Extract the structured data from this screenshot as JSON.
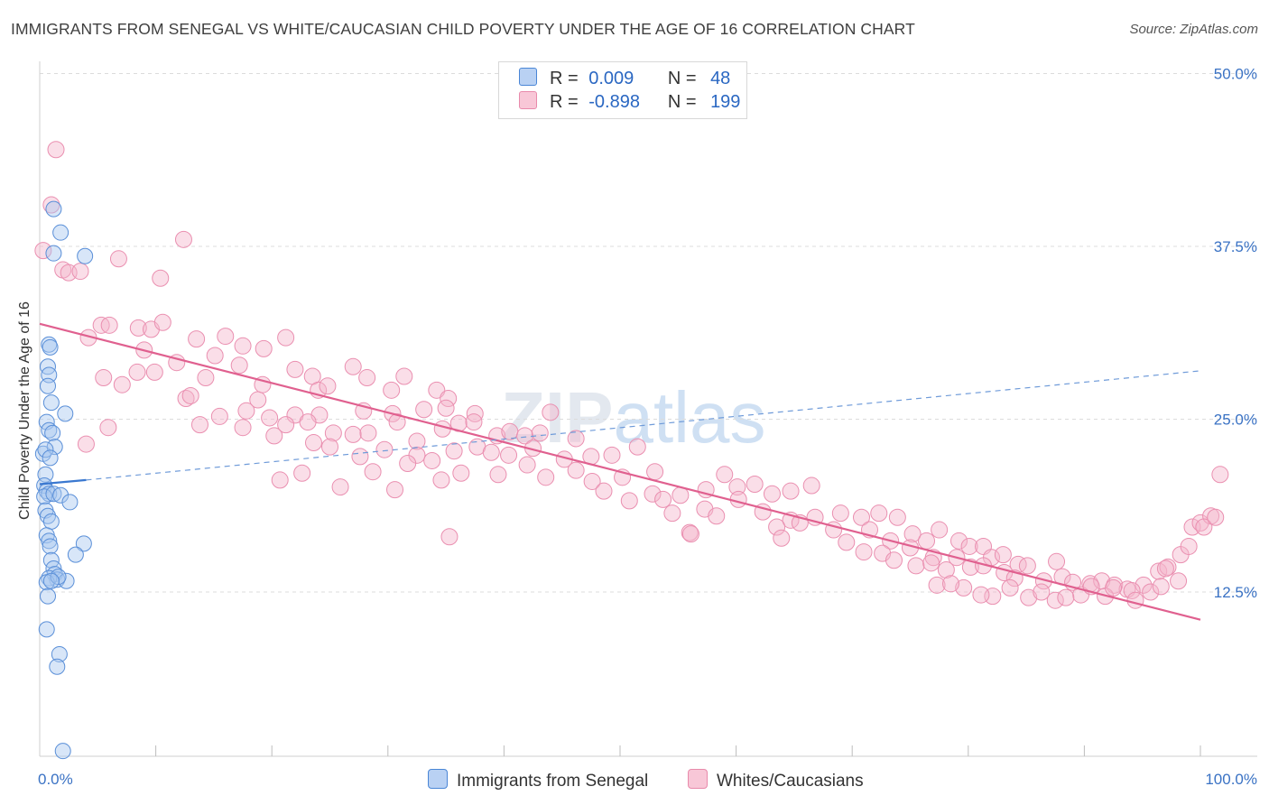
{
  "title": "IMMIGRANTS FROM SENEGAL VS WHITE/CAUCASIAN CHILD POVERTY UNDER THE AGE OF 16 CORRELATION CHART",
  "source": "Source: ZipAtlas.com",
  "watermark": "ZIPatlas",
  "colors": {
    "blue": "#4a86d6",
    "blue_fill": "#a9c7f0",
    "pink": "#e05c90",
    "pink_fill": "#f4b6cb",
    "axis_text": "#3a72c4"
  },
  "legend_box": {
    "rows": [
      {
        "r_label": "R =",
        "r_value": "0.009",
        "n_label": "N =",
        "n_value": "48"
      },
      {
        "r_label": "R =",
        "r_value": "-0.898",
        "n_label": "N =",
        "n_value": "199"
      }
    ]
  },
  "bottom_legend": [
    "Immigrants from Senegal",
    "Whites/Caucasians"
  ],
  "chart_data": {
    "type": "scatter",
    "title": "IMMIGRANTS FROM SENEGAL VS WHITE/CAUCASIAN CHILD POVERTY UNDER THE AGE OF 16 CORRELATION CHART",
    "xlabel": "",
    "ylabel": "Child Poverty Under the Age of 16",
    "xlim": [
      0,
      100
    ],
    "ylim": [
      0,
      52
    ],
    "x_tick_labels": [
      "0.0%",
      "100.0%"
    ],
    "y_ticks": [
      12.5,
      25.0,
      37.5,
      50.0
    ],
    "y_tick_labels": [
      "12.5%",
      "25.0%",
      "37.5%",
      "50.0%"
    ],
    "grid": "horizontal dashed",
    "legend_placement": "top-center",
    "series": [
      {
        "name": "Immigrants from Senegal",
        "R": 0.009,
        "N": 48,
        "trend": {
          "solid": [
            [
              0,
              20.3
            ],
            [
              4,
              20.6
            ]
          ],
          "dashed": [
            [
              4,
              20.6
            ],
            [
              100,
              28.5
            ]
          ]
        },
        "points": [
          [
            0.3,
            22.5
          ],
          [
            0.5,
            21.0
          ],
          [
            0.4,
            20.2
          ],
          [
            0.6,
            19.8
          ],
          [
            0.8,
            19.6
          ],
          [
            0.4,
            19.4
          ],
          [
            1.2,
            19.6
          ],
          [
            1.8,
            19.5
          ],
          [
            0.5,
            18.4
          ],
          [
            0.7,
            18.0
          ],
          [
            1.0,
            17.6
          ],
          [
            0.6,
            16.6
          ],
          [
            0.8,
            16.2
          ],
          [
            0.9,
            15.8
          ],
          [
            1.0,
            14.8
          ],
          [
            1.2,
            14.2
          ],
          [
            1.3,
            13.8
          ],
          [
            1.5,
            13.4
          ],
          [
            0.8,
            13.5
          ],
          [
            0.6,
            13.2
          ],
          [
            0.7,
            12.2
          ],
          [
            0.6,
            9.8
          ],
          [
            1.7,
            8.0
          ],
          [
            1.5,
            7.1
          ],
          [
            2.0,
            1.0
          ],
          [
            1.2,
            40.2
          ],
          [
            1.8,
            38.5
          ],
          [
            1.2,
            37.0
          ],
          [
            3.9,
            36.8
          ],
          [
            0.8,
            30.4
          ],
          [
            0.9,
            30.2
          ],
          [
            0.7,
            28.8
          ],
          [
            0.8,
            28.2
          ],
          [
            0.7,
            27.4
          ],
          [
            1.0,
            26.2
          ],
          [
            2.2,
            25.4
          ],
          [
            0.6,
            24.8
          ],
          [
            0.8,
            24.2
          ],
          [
            1.1,
            24.0
          ],
          [
            1.3,
            23.0
          ],
          [
            0.5,
            22.8
          ],
          [
            0.9,
            22.2
          ],
          [
            2.6,
            19.0
          ],
          [
            3.8,
            16.0
          ],
          [
            3.1,
            15.2
          ],
          [
            2.3,
            13.3
          ],
          [
            1.6,
            13.6
          ],
          [
            1.0,
            13.3
          ]
        ]
      },
      {
        "name": "Whites/Caucasians",
        "R": -0.898,
        "N": 199,
        "trend": {
          "solid": [
            [
              0,
              31.9
            ],
            [
              100,
              10.5
            ]
          ]
        },
        "points": [
          [
            1.4,
            44.5
          ],
          [
            1.0,
            40.5
          ],
          [
            0.3,
            37.2
          ],
          [
            2.0,
            35.8
          ],
          [
            2.5,
            35.6
          ],
          [
            3.5,
            35.7
          ],
          [
            6.8,
            36.6
          ],
          [
            10.4,
            35.2
          ],
          [
            12.4,
            38.0
          ],
          [
            4.2,
            30.9
          ],
          [
            5.3,
            31.8
          ],
          [
            6.0,
            31.8
          ],
          [
            8.5,
            31.6
          ],
          [
            9.6,
            31.5
          ],
          [
            10.6,
            32.0
          ],
          [
            13.5,
            30.8
          ],
          [
            16.0,
            31.0
          ],
          [
            17.5,
            30.3
          ],
          [
            19.3,
            30.1
          ],
          [
            21.2,
            30.9
          ],
          [
            9.0,
            30.0
          ],
          [
            7.1,
            27.5
          ],
          [
            5.5,
            28.0
          ],
          [
            8.4,
            28.4
          ],
          [
            9.9,
            28.4
          ],
          [
            11.8,
            29.1
          ],
          [
            14.3,
            28.0
          ],
          [
            15.1,
            29.6
          ],
          [
            17.2,
            28.9
          ],
          [
            18.8,
            26.4
          ],
          [
            19.2,
            27.5
          ],
          [
            22.0,
            28.6
          ],
          [
            23.5,
            28.1
          ],
          [
            24.0,
            27.1
          ],
          [
            24.8,
            27.4
          ],
          [
            27.0,
            28.8
          ],
          [
            28.2,
            28.0
          ],
          [
            31.4,
            28.1
          ],
          [
            30.3,
            27.1
          ],
          [
            34.2,
            27.1
          ],
          [
            35.2,
            26.5
          ],
          [
            12.6,
            26.5
          ],
          [
            13.0,
            26.7
          ],
          [
            17.8,
            25.6
          ],
          [
            19.8,
            25.1
          ],
          [
            22.0,
            25.3
          ],
          [
            24.1,
            25.3
          ],
          [
            27.9,
            25.6
          ],
          [
            30.4,
            25.4
          ],
          [
            33.1,
            25.7
          ],
          [
            35.0,
            25.8
          ],
          [
            37.5,
            25.4
          ],
          [
            4.0,
            23.2
          ],
          [
            5.9,
            24.4
          ],
          [
            13.8,
            24.6
          ],
          [
            15.5,
            25.2
          ],
          [
            17.5,
            24.4
          ],
          [
            20.2,
            23.8
          ],
          [
            21.2,
            24.6
          ],
          [
            23.1,
            24.8
          ],
          [
            25.3,
            24.0
          ],
          [
            27.0,
            23.9
          ],
          [
            28.3,
            24.0
          ],
          [
            30.8,
            24.8
          ],
          [
            32.5,
            23.4
          ],
          [
            34.7,
            24.3
          ],
          [
            36.1,
            24.7
          ],
          [
            37.4,
            24.8
          ],
          [
            39.4,
            23.8
          ],
          [
            40.5,
            24.1
          ],
          [
            41.8,
            23.8
          ],
          [
            43.1,
            24.0
          ],
          [
            44.0,
            25.5
          ],
          [
            46.2,
            23.6
          ],
          [
            23.6,
            23.3
          ],
          [
            25.0,
            23.0
          ],
          [
            27.6,
            22.3
          ],
          [
            29.7,
            22.8
          ],
          [
            32.5,
            22.4
          ],
          [
            33.8,
            22.0
          ],
          [
            35.7,
            22.7
          ],
          [
            37.7,
            23.0
          ],
          [
            38.9,
            22.6
          ],
          [
            40.4,
            22.4
          ],
          [
            42.5,
            22.9
          ],
          [
            45.2,
            22.1
          ],
          [
            47.5,
            22.3
          ],
          [
            49.3,
            22.4
          ],
          [
            51.5,
            23.0
          ],
          [
            20.7,
            20.6
          ],
          [
            22.6,
            21.1
          ],
          [
            25.9,
            20.1
          ],
          [
            28.7,
            21.2
          ],
          [
            30.6,
            19.9
          ],
          [
            31.7,
            21.8
          ],
          [
            34.6,
            20.6
          ],
          [
            36.3,
            21.1
          ],
          [
            39.5,
            21.0
          ],
          [
            42.0,
            21.7
          ],
          [
            43.6,
            20.8
          ],
          [
            46.2,
            21.3
          ],
          [
            47.6,
            20.5
          ],
          [
            50.2,
            20.8
          ],
          [
            52.8,
            19.6
          ],
          [
            55.2,
            19.5
          ],
          [
            57.4,
            19.9
          ],
          [
            59.0,
            21.0
          ],
          [
            60.1,
            20.1
          ],
          [
            61.6,
            20.3
          ],
          [
            63.1,
            19.6
          ],
          [
            64.7,
            19.8
          ],
          [
            66.5,
            20.2
          ],
          [
            53.0,
            21.2
          ],
          [
            48.6,
            19.8
          ],
          [
            50.8,
            19.1
          ],
          [
            53.7,
            19.2
          ],
          [
            54.5,
            18.2
          ],
          [
            57.3,
            18.5
          ],
          [
            58.3,
            18.0
          ],
          [
            60.2,
            19.2
          ],
          [
            62.3,
            18.3
          ],
          [
            64.7,
            17.7
          ],
          [
            65.5,
            17.5
          ],
          [
            66.8,
            17.9
          ],
          [
            69.0,
            18.2
          ],
          [
            70.8,
            17.9
          ],
          [
            72.3,
            18.2
          ],
          [
            73.9,
            17.9
          ],
          [
            63.5,
            17.2
          ],
          [
            68.4,
            17.0
          ],
          [
            71.5,
            17.0
          ],
          [
            73.3,
            16.2
          ],
          [
            75.2,
            16.7
          ],
          [
            76.4,
            16.2
          ],
          [
            77.5,
            17.0
          ],
          [
            79.2,
            16.2
          ],
          [
            80.1,
            15.8
          ],
          [
            81.3,
            15.8
          ],
          [
            56.0,
            16.8
          ],
          [
            63.9,
            16.4
          ],
          [
            69.5,
            16.1
          ],
          [
            71.0,
            15.4
          ],
          [
            72.6,
            15.3
          ],
          [
            75.0,
            15.7
          ],
          [
            77.0,
            15.0
          ],
          [
            79.0,
            15.0
          ],
          [
            82.0,
            15.0
          ],
          [
            83.0,
            15.2
          ],
          [
            84.3,
            14.5
          ],
          [
            85.1,
            14.4
          ],
          [
            87.6,
            14.7
          ],
          [
            35.3,
            16.5
          ],
          [
            56.1,
            16.7
          ],
          [
            73.6,
            14.8
          ],
          [
            75.5,
            14.4
          ],
          [
            76.8,
            14.6
          ],
          [
            78.1,
            14.1
          ],
          [
            80.2,
            14.3
          ],
          [
            81.3,
            14.4
          ],
          [
            83.1,
            13.9
          ],
          [
            84.0,
            13.5
          ],
          [
            86.5,
            13.3
          ],
          [
            88.1,
            13.6
          ],
          [
            89.0,
            13.2
          ],
          [
            90.5,
            13.1
          ],
          [
            91.5,
            13.3
          ],
          [
            92.6,
            13.0
          ],
          [
            93.7,
            12.7
          ],
          [
            95.1,
            13.0
          ],
          [
            96.4,
            14.0
          ],
          [
            97.2,
            14.3
          ],
          [
            98.3,
            15.2
          ],
          [
            99.0,
            15.8
          ],
          [
            99.3,
            17.2
          ],
          [
            100.0,
            17.5
          ],
          [
            100.9,
            18.0
          ],
          [
            101.7,
            21.0
          ],
          [
            91.8,
            12.2
          ],
          [
            94.1,
            12.6
          ],
          [
            77.3,
            13.0
          ],
          [
            79.6,
            12.8
          ],
          [
            82.1,
            12.2
          ],
          [
            85.2,
            12.1
          ],
          [
            87.5,
            11.9
          ],
          [
            89.7,
            12.3
          ],
          [
            90.6,
            12.9
          ],
          [
            92.5,
            12.8
          ],
          [
            94.4,
            11.9
          ],
          [
            95.7,
            12.5
          ],
          [
            96.6,
            12.9
          ],
          [
            98.1,
            13.3
          ],
          [
            100.3,
            17.2
          ],
          [
            101.3,
            17.9
          ],
          [
            97.0,
            14.2
          ],
          [
            86.3,
            12.5
          ],
          [
            88.4,
            12.1
          ],
          [
            81.1,
            12.3
          ],
          [
            78.5,
            13.1
          ],
          [
            83.6,
            12.8
          ]
        ]
      }
    ]
  }
}
